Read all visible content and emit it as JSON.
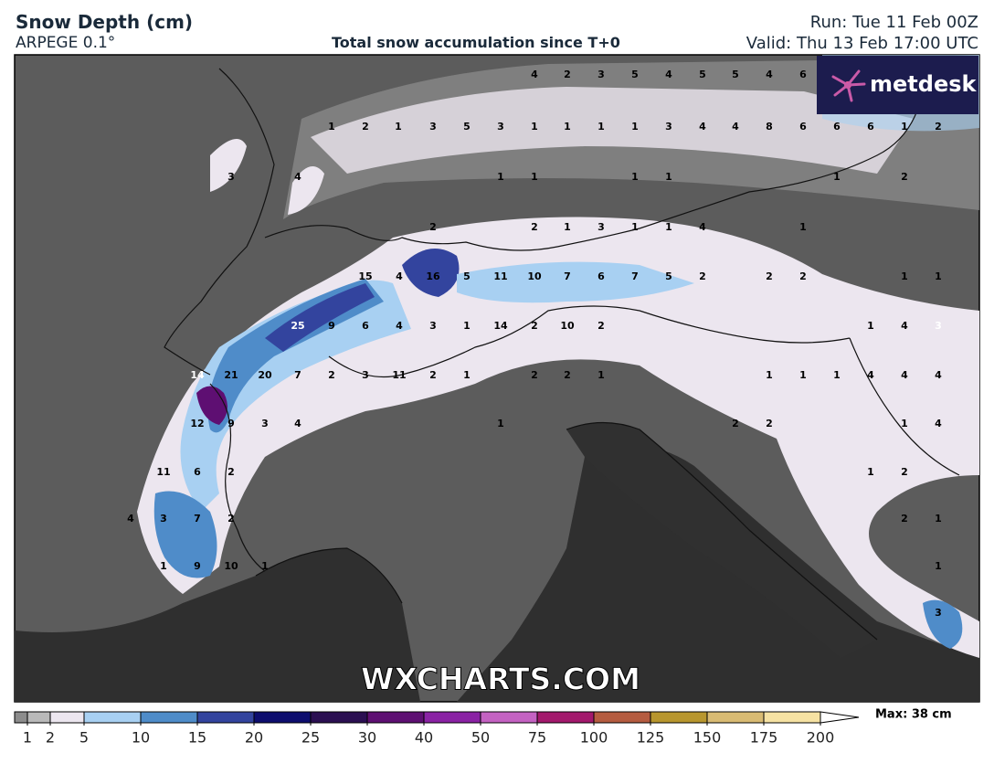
{
  "header": {
    "title": "Snow Depth (cm)",
    "model": "ARPEGE 0.1°",
    "subtitle": "Total snow accumulation since T+0",
    "run": "Run: Tue 11 Feb 00Z",
    "valid": "Valid: Thu 13 Feb 17:00 UTC"
  },
  "logo": "metdesk",
  "watermark": "WXCHARTS.COM",
  "map": {
    "labels": [
      4,
      2,
      3,
      5,
      4,
      5,
      5,
      4,
      6,
      1,
      2,
      1,
      3,
      5,
      3,
      1,
      1,
      1,
      1,
      3,
      4,
      4,
      8,
      6,
      6,
      6,
      1,
      2,
      3,
      4,
      1,
      1,
      1,
      1,
      1,
      2,
      2,
      2,
      1,
      3,
      1,
      1,
      4,
      1,
      15,
      4,
      16,
      5,
      11,
      10,
      7,
      6,
      7,
      5,
      2,
      2,
      2,
      1,
      1,
      25,
      9,
      6,
      4,
      3,
      1,
      14,
      2,
      10,
      2,
      1,
      4,
      3,
      14,
      21,
      20,
      7,
      2,
      3,
      11,
      2,
      1,
      2,
      2,
      1,
      1,
      1,
      1,
      4,
      4,
      4,
      12,
      9,
      3,
      4,
      1,
      2,
      2,
      1,
      4,
      11,
      6,
      2,
      1,
      2,
      4,
      3,
      7,
      2,
      2,
      1,
      1,
      9,
      10,
      1,
      1,
      3
    ]
  },
  "legend": {
    "ticks": [
      1,
      2,
      5,
      10,
      15,
      20,
      25,
      30,
      40,
      50,
      75,
      100,
      125,
      150,
      175,
      200
    ],
    "colors": [
      "#8c8c8c",
      "#b9b9b9",
      "#ece6ef",
      "#a8d0f2",
      "#4f8cc9",
      "#33449e",
      "#0d0d6e",
      "#2b0f52",
      "#5e0f72",
      "#8a22a4",
      "#c462c2",
      "#a3196c",
      "#b55c40",
      "#b8962e",
      "#d9bb73",
      "#f6e2a3"
    ],
    "max_label": "Max: 38 cm"
  }
}
